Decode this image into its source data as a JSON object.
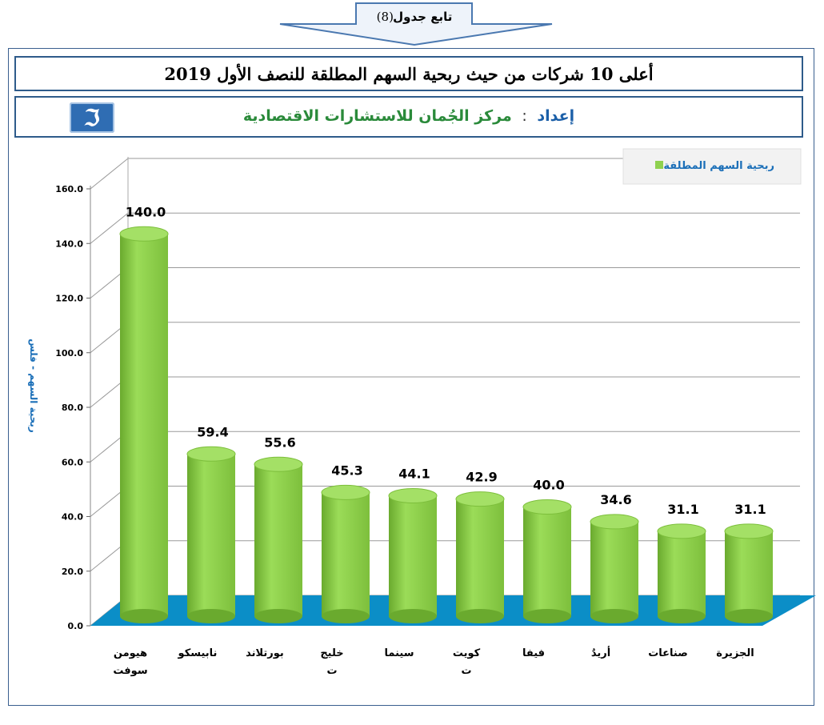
{
  "header": {
    "arrow_label": "تابع جدول",
    "arrow_number": "(8)",
    "title": "أعلى 10 شركات من حيث ربحية السهم المطلقة للنصف الأول 2019",
    "subtitle_label": "إعداد",
    "subtitle_sep": ":",
    "subtitle_value": "مركز الجُمان للاستشارات الاقتصادية",
    "logo_icon": "aljuman-logo-icon"
  },
  "colors": {
    "bar": "#8fd14f",
    "bar_dark": "#5f9a2a",
    "floor": "#0b8ec7",
    "frame": "#2e5b8a",
    "axis_title": "#1b6fb8"
  },
  "chart_data": {
    "type": "bar",
    "title": "",
    "xlabel": "",
    "ylabel": "ربحية السهم - فلس",
    "ylim": [
      0,
      160
    ],
    "yticks": [
      "0.0",
      "20.0",
      "40.0",
      "60.0",
      "80.0",
      "100.0",
      "120.0",
      "140.0",
      "160.0"
    ],
    "grid": true,
    "legend_position": "top-right",
    "categories": [
      "هيومن سوفت",
      "نابيسكو",
      "بورتلاند",
      "خليج ت",
      "سينما",
      "كويت ت",
      "فيفا",
      "أريدُ",
      "صناعات",
      "الجزيرة"
    ],
    "series": [
      {
        "name": "ربحية السهم المطلقة",
        "values": [
          140.0,
          59.4,
          55.6,
          45.3,
          44.1,
          42.9,
          40.0,
          34.6,
          31.1,
          31.1
        ],
        "labels": [
          "140.0",
          "59.4",
          "55.6",
          "45.3",
          "44.1",
          "42.9",
          "40.0",
          "34.6",
          "31.1",
          "31.1"
        ]
      }
    ]
  }
}
